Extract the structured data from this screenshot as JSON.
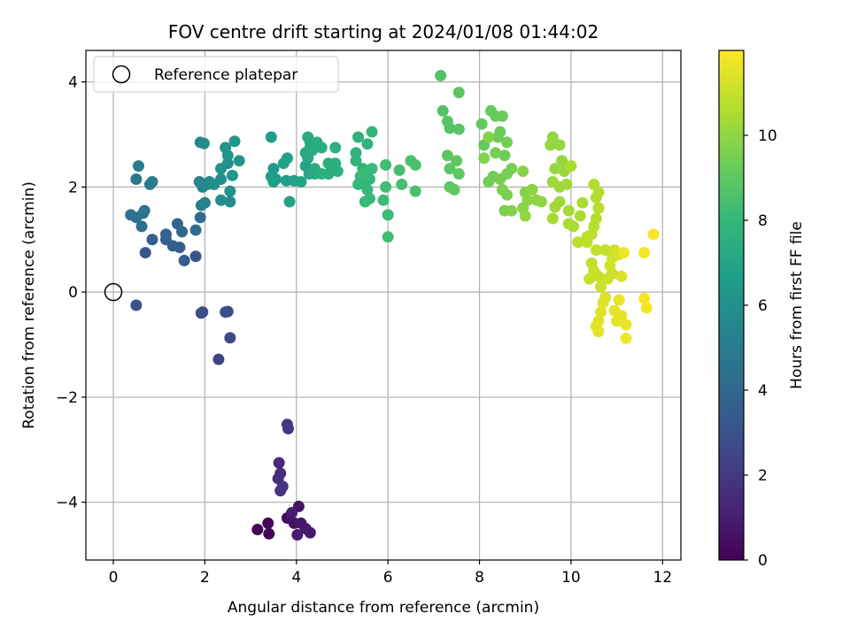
{
  "chart_data": {
    "type": "scatter",
    "title": "FOV centre drift starting at 2024/01/08 01:44:02",
    "xlabel": "Angular distance from reference (arcmin)",
    "ylabel": "Rotation from reference (arcmin)",
    "xlim": [
      -0.6,
      12.4
    ],
    "ylim": [
      -5.1,
      4.6
    ],
    "xticks": [
      0,
      2,
      4,
      6,
      8,
      10,
      12
    ],
    "yticks": [
      -4,
      -2,
      0,
      2,
      4
    ],
    "grid": true,
    "legend": {
      "position": "top-left",
      "entries": [
        {
          "label": "Reference platepar",
          "marker": "open-circle",
          "x": 0,
          "y": 0
        }
      ]
    },
    "colorbar": {
      "label": "Hours from first FF file",
      "colormap": "viridis",
      "range": [
        0,
        12
      ],
      "ticks": [
        0,
        2,
        4,
        6,
        8,
        10
      ]
    },
    "series": [
      {
        "points": [
          [
            3.15,
            -4.52,
            0.0
          ],
          [
            3.4,
            -4.6,
            0.1
          ],
          [
            3.38,
            -4.4,
            0.2
          ],
          [
            3.8,
            -4.3,
            0.4
          ],
          [
            3.95,
            -4.4,
            0.5
          ],
          [
            4.05,
            -4.08,
            0.6
          ],
          [
            4.1,
            -4.4,
            0.7
          ],
          [
            4.2,
            -4.5,
            0.8
          ],
          [
            4.3,
            -4.58,
            0.9
          ],
          [
            4.02,
            -4.62,
            1.0
          ],
          [
            3.9,
            -4.2,
            1.0
          ],
          [
            3.62,
            -3.25,
            1.4
          ],
          [
            3.65,
            -3.45,
            1.5
          ],
          [
            3.6,
            -3.55,
            1.6
          ],
          [
            3.7,
            -3.7,
            1.7
          ],
          [
            3.65,
            -3.78,
            1.8
          ],
          [
            3.8,
            -2.52,
            1.9
          ],
          [
            3.82,
            -2.6,
            2.0
          ],
          [
            2.3,
            -1.28,
            2.4
          ],
          [
            2.55,
            -0.87,
            2.6
          ],
          [
            1.95,
            -0.38,
            2.8
          ],
          [
            1.92,
            -0.4,
            2.85
          ],
          [
            2.5,
            -0.37,
            2.9
          ],
          [
            2.45,
            -0.38,
            2.95
          ],
          [
            0.5,
            -0.25,
            3.0
          ],
          [
            1.8,
            0.68,
            3.2
          ],
          [
            0.7,
            0.75,
            3.3
          ],
          [
            1.55,
            0.6,
            3.4
          ],
          [
            1.45,
            0.85,
            3.5
          ],
          [
            1.3,
            0.88,
            3.5
          ],
          [
            0.85,
            1.0,
            3.6
          ],
          [
            1.15,
            1.0,
            3.7
          ],
          [
            1.15,
            1.1,
            3.8
          ],
          [
            1.4,
            1.3,
            3.9
          ],
          [
            1.5,
            1.15,
            4.0
          ],
          [
            1.9,
            1.42,
            4.1
          ],
          [
            1.8,
            1.18,
            4.2
          ],
          [
            0.62,
            1.25,
            4.3
          ],
          [
            0.38,
            1.47,
            4.4
          ],
          [
            0.5,
            1.42,
            4.5
          ],
          [
            0.65,
            1.5,
            4.6
          ],
          [
            0.68,
            1.55,
            4.7
          ],
          [
            0.5,
            2.15,
            4.8
          ],
          [
            0.8,
            2.05,
            4.9
          ],
          [
            0.55,
            2.4,
            5.0
          ],
          [
            0.85,
            2.1,
            5.0
          ],
          [
            1.92,
            1.65,
            5.2
          ],
          [
            2.0,
            1.7,
            5.3
          ],
          [
            1.95,
            2.0,
            5.4
          ],
          [
            2.05,
            2.05,
            5.5
          ],
          [
            1.88,
            2.1,
            5.5
          ],
          [
            2.1,
            2.1,
            5.6
          ],
          [
            1.9,
            2.85,
            5.6
          ],
          [
            1.98,
            2.83,
            5.7
          ],
          [
            2.35,
            1.75,
            5.8
          ],
          [
            2.55,
            1.72,
            5.9
          ],
          [
            2.35,
            2.15,
            5.9
          ],
          [
            2.55,
            1.92,
            6.0
          ],
          [
            2.2,
            2.05,
            6.0
          ],
          [
            2.35,
            2.35,
            6.1
          ],
          [
            2.5,
            2.45,
            6.1
          ],
          [
            2.5,
            2.6,
            6.2
          ],
          [
            2.45,
            2.75,
            6.2
          ],
          [
            2.6,
            2.22,
            6.3
          ],
          [
            2.75,
            2.5,
            6.3
          ],
          [
            2.65,
            2.87,
            6.4
          ],
          [
            3.45,
            2.2,
            6.5
          ],
          [
            3.5,
            2.35,
            6.5
          ],
          [
            3.45,
            2.95,
            6.6
          ],
          [
            3.55,
            2.15,
            6.6
          ],
          [
            3.5,
            2.1,
            6.7
          ],
          [
            3.78,
            2.12,
            6.7
          ],
          [
            3.95,
            2.12,
            6.8
          ],
          [
            3.8,
            2.55,
            6.8
          ],
          [
            3.72,
            2.45,
            6.9
          ],
          [
            3.85,
            1.72,
            6.9
          ],
          [
            4.1,
            2.1,
            7.0
          ],
          [
            4.2,
            2.4,
            7.0
          ],
          [
            4.28,
            2.25,
            7.1
          ],
          [
            4.25,
            2.55,
            7.1
          ],
          [
            4.3,
            2.75,
            7.2
          ],
          [
            4.3,
            2.85,
            7.2
          ],
          [
            4.2,
            2.65,
            7.2
          ],
          [
            4.25,
            2.95,
            7.3
          ],
          [
            4.35,
            2.7,
            7.3
          ],
          [
            4.4,
            2.25,
            7.3
          ],
          [
            4.45,
            2.85,
            7.4
          ],
          [
            4.55,
            2.75,
            7.4
          ],
          [
            4.4,
            2.35,
            7.4
          ],
          [
            4.55,
            2.25,
            7.5
          ],
          [
            4.7,
            2.25,
            7.5
          ],
          [
            4.7,
            2.45,
            7.5
          ],
          [
            4.8,
            2.35,
            7.5
          ],
          [
            4.85,
            2.45,
            7.6
          ],
          [
            4.85,
            2.75,
            7.6
          ],
          [
            4.9,
            2.3,
            7.6
          ],
          [
            5.3,
            2.65,
            7.7
          ],
          [
            5.35,
            2.95,
            7.7
          ],
          [
            5.3,
            2.5,
            7.8
          ],
          [
            5.45,
            2.35,
            7.8
          ],
          [
            5.55,
            2.82,
            7.8
          ],
          [
            5.65,
            3.05,
            7.9
          ],
          [
            5.4,
            2.2,
            7.9
          ],
          [
            5.5,
            2.1,
            7.9
          ],
          [
            5.6,
            2.15,
            8.0
          ],
          [
            5.35,
            2.05,
            8.0
          ],
          [
            5.55,
            1.95,
            8.0
          ],
          [
            5.5,
            1.72,
            8.1
          ],
          [
            5.6,
            1.78,
            8.1
          ],
          [
            5.65,
            2.35,
            8.1
          ],
          [
            5.9,
            1.75,
            8.2
          ],
          [
            5.45,
            2.25,
            8.2
          ],
          [
            6.0,
            1.47,
            8.2
          ],
          [
            6.0,
            1.05,
            8.3
          ],
          [
            5.95,
            2.0,
            8.3
          ],
          [
            5.95,
            2.42,
            8.3
          ],
          [
            6.25,
            2.32,
            8.4
          ],
          [
            6.3,
            2.05,
            8.4
          ],
          [
            6.5,
            2.5,
            8.5
          ],
          [
            6.6,
            2.42,
            8.5
          ],
          [
            6.6,
            1.92,
            8.5
          ],
          [
            7.15,
            4.12,
            8.7
          ],
          [
            7.2,
            3.45,
            8.7
          ],
          [
            7.3,
            3.25,
            8.8
          ],
          [
            7.35,
            3.12,
            8.8
          ],
          [
            7.55,
            3.1,
            8.8
          ],
          [
            7.55,
            3.8,
            8.9
          ],
          [
            7.3,
            2.6,
            8.9
          ],
          [
            7.35,
            2.35,
            8.9
          ],
          [
            7.45,
            1.95,
            9.0
          ],
          [
            7.5,
            2.5,
            9.0
          ],
          [
            7.55,
            2.25,
            9.0
          ],
          [
            7.35,
            2.0,
            9.0
          ],
          [
            8.05,
            3.2,
            9.1
          ],
          [
            8.1,
            2.8,
            9.1
          ],
          [
            8.25,
            3.45,
            9.2
          ],
          [
            8.35,
            3.35,
            9.2
          ],
          [
            8.45,
            3.05,
            9.2
          ],
          [
            8.5,
            3.35,
            9.3
          ],
          [
            8.4,
            2.95,
            9.3
          ],
          [
            8.55,
            2.6,
            9.3
          ],
          [
            8.6,
            2.85,
            9.4
          ],
          [
            8.3,
            2.2,
            9.4
          ],
          [
            8.2,
            2.1,
            9.4
          ],
          [
            8.35,
            2.65,
            9.5
          ],
          [
            8.6,
            2.25,
            9.5
          ],
          [
            8.45,
            2.15,
            9.5
          ],
          [
            8.7,
            2.35,
            9.5
          ],
          [
            8.5,
            1.95,
            9.6
          ],
          [
            8.6,
            1.85,
            9.6
          ],
          [
            8.55,
            1.55,
            9.6
          ],
          [
            8.7,
            1.55,
            9.7
          ],
          [
            8.1,
            2.55,
            9.7
          ],
          [
            8.2,
            2.95,
            9.7
          ],
          [
            8.95,
            2.3,
            9.8
          ],
          [
            9.0,
            1.9,
            9.8
          ],
          [
            8.95,
            1.6,
            9.8
          ],
          [
            9.05,
            1.75,
            9.9
          ],
          [
            9.15,
            1.95,
            9.9
          ],
          [
            9.25,
            1.75,
            9.9
          ],
          [
            9.35,
            1.72,
            10.0
          ],
          [
            9.0,
            1.45,
            10.0
          ],
          [
            9.6,
            2.95,
            10.0
          ],
          [
            9.55,
            2.8,
            10.0
          ],
          [
            9.75,
            2.8,
            10.1
          ],
          [
            9.65,
            2.35,
            10.1
          ],
          [
            9.8,
            2.5,
            10.1
          ],
          [
            9.6,
            2.1,
            10.2
          ],
          [
            9.75,
            2.0,
            10.2
          ],
          [
            9.85,
            2.3,
            10.2
          ],
          [
            9.9,
            2.05,
            10.3
          ],
          [
            9.65,
            1.62,
            10.3
          ],
          [
            9.75,
            1.72,
            10.3
          ],
          [
            9.6,
            1.4,
            10.4
          ],
          [
            9.95,
            1.55,
            10.4
          ],
          [
            9.95,
            1.3,
            10.4
          ],
          [
            10.05,
            1.25,
            10.5
          ],
          [
            10.2,
            1.45,
            10.5
          ],
          [
            10.25,
            1.7,
            10.5
          ],
          [
            10.0,
            2.4,
            10.5
          ],
          [
            10.5,
            2.05,
            10.6
          ],
          [
            10.6,
            1.9,
            10.6
          ],
          [
            10.55,
            1.8,
            10.6
          ],
          [
            10.6,
            1.6,
            10.7
          ],
          [
            10.55,
            1.4,
            10.7
          ],
          [
            10.5,
            1.25,
            10.7
          ],
          [
            10.45,
            1.1,
            10.8
          ],
          [
            10.35,
            1.05,
            10.8
          ],
          [
            10.35,
            0.95,
            10.8
          ],
          [
            10.15,
            0.95,
            10.8
          ],
          [
            10.55,
            0.8,
            10.9
          ],
          [
            10.75,
            0.8,
            10.9
          ],
          [
            10.45,
            0.55,
            10.9
          ],
          [
            10.4,
            0.25,
            11.0
          ],
          [
            10.5,
            0.4,
            11.0
          ],
          [
            10.6,
            0.3,
            11.0
          ],
          [
            10.65,
            0.1,
            11.1
          ],
          [
            10.8,
            0.25,
            11.1
          ],
          [
            10.9,
            0.35,
            11.1
          ],
          [
            10.85,
            0.5,
            11.2
          ],
          [
            10.9,
            0.65,
            11.2
          ],
          [
            10.95,
            0.8,
            11.2
          ],
          [
            11.05,
            0.72,
            11.3
          ],
          [
            11.1,
            0.3,
            11.3
          ],
          [
            10.75,
            -0.1,
            11.3
          ],
          [
            10.7,
            -0.2,
            11.4
          ],
          [
            10.65,
            -0.38,
            11.4
          ],
          [
            10.6,
            -0.55,
            11.4
          ],
          [
            10.55,
            -0.65,
            11.5
          ],
          [
            10.6,
            -0.75,
            11.5
          ],
          [
            11.0,
            -0.55,
            11.5
          ],
          [
            11.05,
            -0.15,
            11.6
          ],
          [
            11.1,
            -0.45,
            11.6
          ],
          [
            11.2,
            -0.62,
            11.6
          ],
          [
            11.2,
            -0.88,
            11.7
          ],
          [
            11.15,
            0.75,
            11.7
          ],
          [
            11.6,
            0.75,
            11.8
          ],
          [
            11.65,
            -0.3,
            11.8
          ],
          [
            11.6,
            -0.12,
            11.9
          ],
          [
            11.8,
            1.1,
            11.9
          ],
          [
            10.95,
            -0.35,
            11.5
          ]
        ]
      }
    ]
  }
}
